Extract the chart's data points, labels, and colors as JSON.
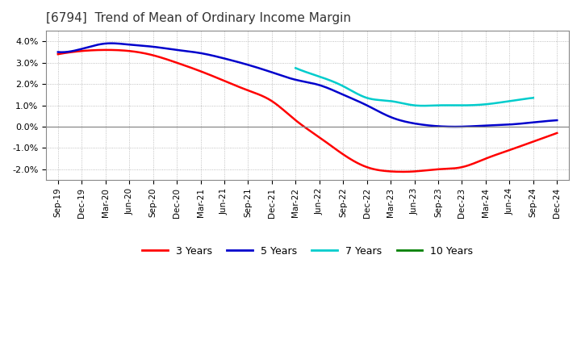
{
  "title": "[6794]  Trend of Mean of Ordinary Income Margin",
  "title_fontsize": 11,
  "title_color": "#333333",
  "background_color": "#ffffff",
  "plot_bg_color": "#ffffff",
  "grid_color": "#999999",
  "ylim": [
    -2.5,
    4.5
  ],
  "yticks": [
    -2.0,
    -1.0,
    0.0,
    1.0,
    2.0,
    3.0,
    4.0
  ],
  "x_labels": [
    "Sep-19",
    "Dec-19",
    "Mar-20",
    "Jun-20",
    "Sep-20",
    "Dec-20",
    "Mar-21",
    "Jun-21",
    "Sep-21",
    "Dec-21",
    "Mar-22",
    "Jun-22",
    "Sep-22",
    "Dec-22",
    "Mar-23",
    "Jun-23",
    "Sep-23",
    "Dec-23",
    "Mar-24",
    "Jun-24",
    "Sep-24",
    "Dec-24"
  ],
  "series": {
    "3 Years": {
      "color": "#ff0000",
      "data": [
        3.4,
        3.55,
        3.6,
        3.55,
        3.35,
        3.0,
        2.6,
        2.15,
        1.7,
        1.2,
        0.3,
        -0.5,
        -1.3,
        -1.9,
        -2.1,
        -2.1,
        -2.0,
        -1.9,
        -1.5,
        -1.1,
        -0.7,
        -0.3
      ]
    },
    "5 Years": {
      "color": "#0000cc",
      "data": [
        3.5,
        3.65,
        3.9,
        3.85,
        3.75,
        3.6,
        3.45,
        3.2,
        2.9,
        2.55,
        2.2,
        1.95,
        1.5,
        1.0,
        0.45,
        0.15,
        0.02,
        0.0,
        0.05,
        0.1,
        0.2,
        0.3
      ]
    },
    "7 Years": {
      "color": "#00cccc",
      "data": [
        null,
        null,
        null,
        null,
        null,
        null,
        null,
        null,
        null,
        null,
        2.75,
        2.35,
        1.9,
        1.35,
        1.2,
        1.0,
        1.0,
        1.0,
        1.05,
        1.2,
        1.35,
        null
      ]
    },
    "10 Years": {
      "color": "#008000",
      "data": [
        null,
        null,
        null,
        null,
        null,
        null,
        null,
        null,
        null,
        null,
        null,
        null,
        null,
        null,
        null,
        null,
        null,
        null,
        null,
        null,
        null,
        null
      ]
    }
  },
  "legend": {
    "labels": [
      "3 Years",
      "5 Years",
      "7 Years",
      "10 Years"
    ],
    "colors": [
      "#ff0000",
      "#0000cc",
      "#00cccc",
      "#008000"
    ],
    "ncol": 4
  }
}
